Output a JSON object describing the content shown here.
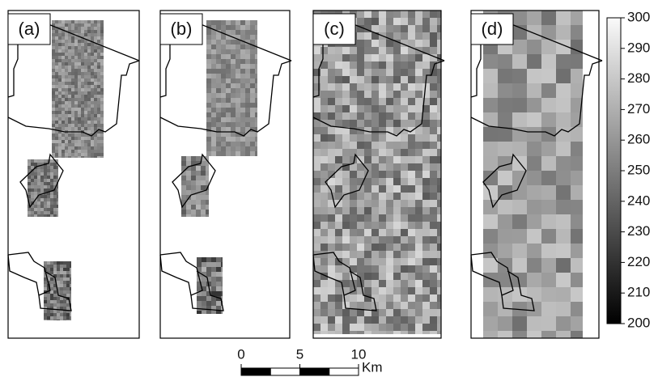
{
  "panels": [
    {
      "label": "(a)"
    },
    {
      "label": "(b)"
    },
    {
      "label": "(c)"
    },
    {
      "label": "(d)"
    }
  ],
  "colorbar": {
    "range": [
      200,
      300
    ],
    "ticks": [
      200,
      210,
      220,
      230,
      240,
      250,
      260,
      270,
      280,
      290,
      300
    ]
  },
  "scalebar": {
    "ticks": [
      0,
      5,
      10
    ],
    "unit": "Km"
  }
}
